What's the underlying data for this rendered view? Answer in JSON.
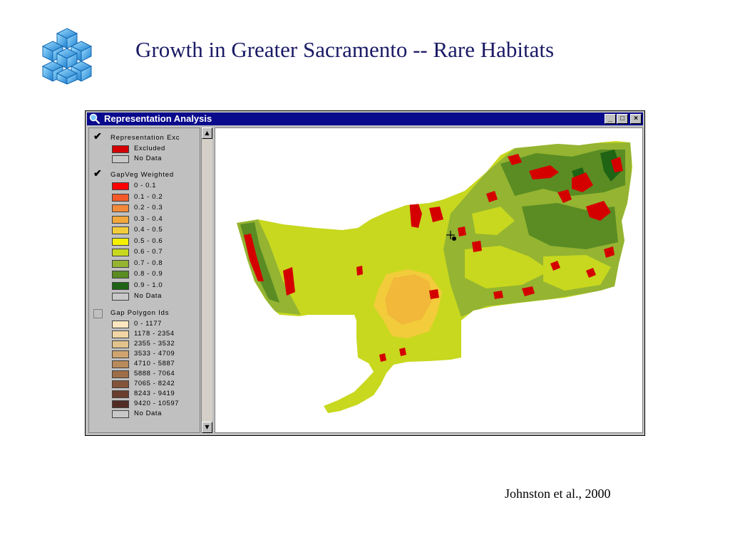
{
  "slide": {
    "title": "Growth in Greater Sacramento -- Rare Habitats",
    "citation": "Johnston et al., 2000",
    "logo_icon": "cube-cluster-icon"
  },
  "window": {
    "title": "Representation Analysis",
    "minimize_label": "_",
    "maximize_label": "□",
    "close_label": "×",
    "titlebar_color": "#0a0a8c"
  },
  "toc": {
    "layers": [
      {
        "name": "Representation Exc",
        "checked": true,
        "entries": [
          {
            "label": "Excluded",
            "color": "#d40000"
          },
          {
            "label": "No Data",
            "color": "#c8c8c8"
          }
        ]
      },
      {
        "name": "GapVeg Weighted",
        "checked": true,
        "entries": [
          {
            "label": "0 - 0.1",
            "color": "#ff0000"
          },
          {
            "label": "0.1 - 0.2",
            "color": "#f25a2a"
          },
          {
            "label": "0.2 - 0.3",
            "color": "#f28a3a"
          },
          {
            "label": "0.3 - 0.4",
            "color": "#f2a83a"
          },
          {
            "label": "0.4 - 0.5",
            "color": "#f2cc3a"
          },
          {
            "label": "0.5 - 0.6",
            "color": "#f5f000"
          },
          {
            "label": "0.6 - 0.7",
            "color": "#c8d81e"
          },
          {
            "label": "0.7 - 0.8",
            "color": "#94b432"
          },
          {
            "label": "0.8 - 0.9",
            "color": "#5a8c23"
          },
          {
            "label": "0.9 - 1.0",
            "color": "#1e6414"
          },
          {
            "label": "No Data",
            "color": "#c8c8c8"
          }
        ]
      },
      {
        "name": "Gap Polygon Ids",
        "checked": false,
        "entries": [
          {
            "label": "0 - 1177",
            "color": "#fbe6c0"
          },
          {
            "label": "1178 - 2354",
            "color": "#f0d6a4"
          },
          {
            "label": "2355 - 3532",
            "color": "#e2c38c"
          },
          {
            "label": "3533 - 4709",
            "color": "#cfa46e"
          },
          {
            "label": "4710 - 5887",
            "color": "#b98a5a"
          },
          {
            "label": "5888 - 7064",
            "color": "#9e6e48"
          },
          {
            "label": "7065 - 8242",
            "color": "#84543a"
          },
          {
            "label": "8243 - 9419",
            "color": "#6a3e2e"
          },
          {
            "label": "9420 - 10597",
            "color": "#522c24"
          },
          {
            "label": "No Data",
            "color": "#c8c8c8"
          }
        ]
      }
    ]
  }
}
